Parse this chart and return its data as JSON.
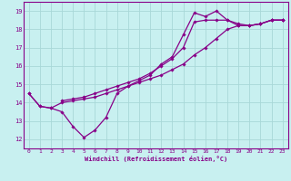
{
  "xlabel": "Windchill (Refroidissement éolien,°C)",
  "background_color": "#c8f0f0",
  "grid_color": "#a8d8d8",
  "line_color": "#880088",
  "xlim": [
    -0.5,
    23.5
  ],
  "ylim": [
    11.5,
    19.5
  ],
  "xticks": [
    0,
    1,
    2,
    3,
    4,
    5,
    6,
    7,
    8,
    9,
    10,
    11,
    12,
    13,
    14,
    15,
    16,
    17,
    18,
    19,
    20,
    21,
    22,
    23
  ],
  "yticks": [
    12,
    13,
    14,
    15,
    16,
    17,
    18,
    19
  ],
  "series": [
    {
      "x": [
        0,
        1,
        2,
        3,
        4,
        5,
        6,
        7,
        8,
        9,
        10,
        11,
        12,
        13,
        14,
        15,
        16,
        17,
        18,
        19,
        20,
        21,
        22,
        23
      ],
      "y": [
        14.5,
        13.8,
        13.7,
        13.5,
        12.7,
        12.1,
        12.5,
        13.2,
        14.5,
        14.9,
        15.2,
        15.5,
        16.1,
        16.5,
        17.7,
        18.9,
        18.7,
        19.0,
        18.5,
        18.2,
        18.2,
        18.3,
        18.5,
        18.5
      ]
    },
    {
      "x": [
        0,
        1,
        2,
        3,
        4,
        5,
        6,
        7,
        8,
        9,
        10,
        11,
        12,
        13,
        14,
        15,
        16,
        17,
        18,
        19,
        20,
        21,
        22,
        23
      ],
      "y": [
        14.5,
        13.8,
        13.7,
        14.0,
        14.1,
        14.2,
        14.3,
        14.5,
        14.7,
        14.9,
        15.1,
        15.3,
        15.5,
        15.8,
        16.1,
        16.6,
        17.0,
        17.5,
        18.0,
        18.2,
        18.2,
        18.3,
        18.5,
        18.5
      ]
    },
    {
      "x": [
        3,
        4,
        5,
        6,
        7,
        8,
        9,
        10,
        11,
        12,
        13,
        14,
        15,
        16,
        17,
        18,
        19,
        20,
        21,
        22,
        23
      ],
      "y": [
        14.1,
        14.2,
        14.3,
        14.5,
        14.7,
        14.9,
        15.1,
        15.3,
        15.6,
        16.0,
        16.4,
        17.0,
        18.4,
        18.5,
        18.5,
        18.5,
        18.3,
        18.2,
        18.3,
        18.5,
        18.5
      ]
    }
  ]
}
